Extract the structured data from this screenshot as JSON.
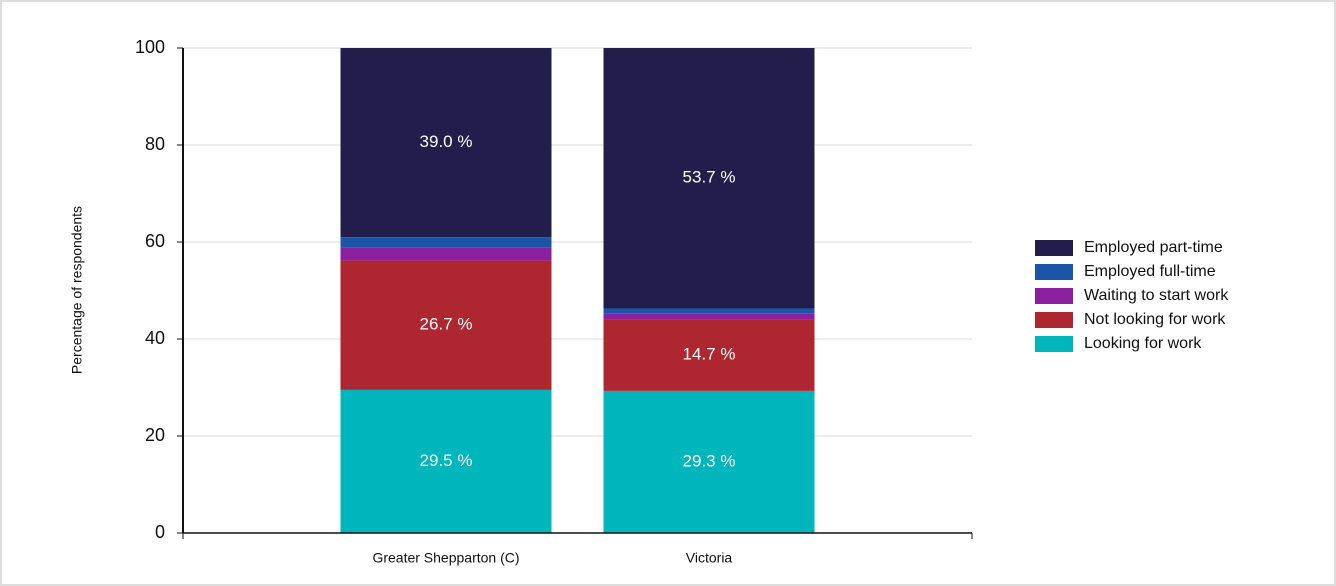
{
  "chart_data": {
    "type": "stacked_bar",
    "ylabel": "Percentage of respondents",
    "categories": [
      "Greater Shepparton (C)",
      "Victoria"
    ],
    "series": [
      {
        "name": "Looking for work",
        "color": "#00b6bd",
        "values": [
          29.5,
          29.3
        ],
        "value_labels": [
          "29.5 %",
          "29.3 %"
        ]
      },
      {
        "name": "Not looking for work",
        "color": "#ae2730",
        "values": [
          26.7,
          14.7
        ],
        "value_labels": [
          "26.7 %",
          "14.7 %"
        ]
      },
      {
        "name": "Waiting to start work",
        "color": "#8a1fa0",
        "values": [
          2.6,
          1.2
        ],
        "value_labels": [
          null,
          null
        ]
      },
      {
        "name": "Employed full-time",
        "color": "#1a55a9",
        "values": [
          2.2,
          1.1
        ],
        "value_labels": [
          null,
          null
        ]
      },
      {
        "name": "Employed part-time",
        "color": "#221d4a",
        "values": [
          39.0,
          53.7
        ],
        "value_labels": [
          "39.0 %",
          "53.7 %"
        ]
      }
    ],
    "ylim": [
      0,
      100
    ],
    "yticks": [
      0,
      20,
      40,
      60,
      80,
      100
    ],
    "grid": true,
    "legend": "right"
  }
}
